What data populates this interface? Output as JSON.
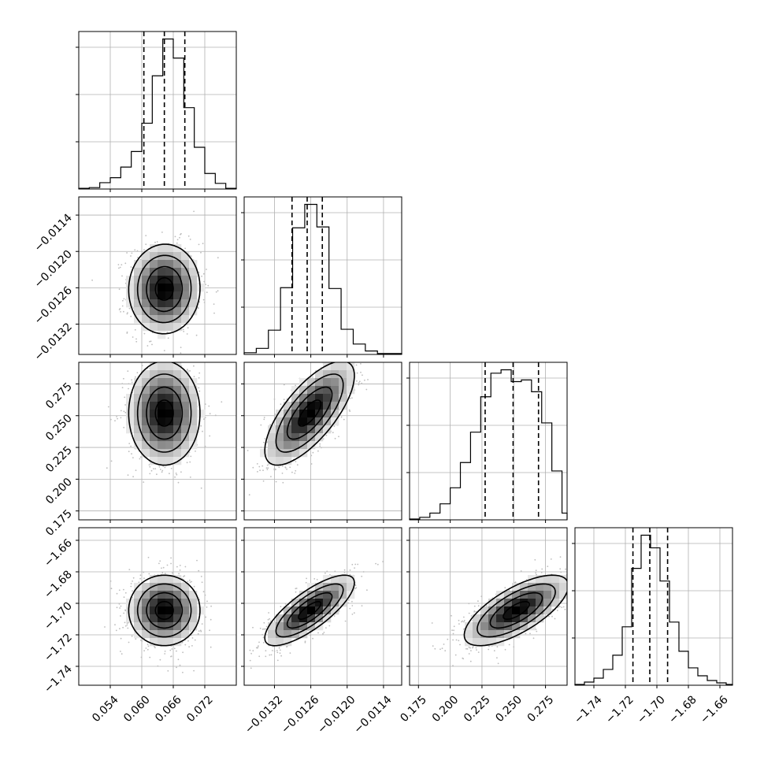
{
  "chart_data": [
    {
      "type": "histogram",
      "panel": "diag-0",
      "xlim": [
        0.048,
        0.078
      ],
      "edges": [
        0.048,
        0.05,
        0.052,
        0.054,
        0.056,
        0.058,
        0.06,
        0.062,
        0.064,
        0.066,
        0.068,
        0.07,
        0.072,
        0.074,
        0.076,
        0.078
      ],
      "counts": [
        1,
        2,
        9,
        16,
        31,
        53,
        93,
        160,
        212,
        185,
        115,
        59,
        22,
        8,
        1
      ],
      "quantiles": [
        0.0604,
        0.0643,
        0.0682
      ],
      "xticks": [
        0.054,
        0.06,
        0.066,
        0.072
      ],
      "xtick_labels": [
        "0.054",
        "0.060",
        "0.066",
        "0.072"
      ]
    },
    {
      "type": "histogram",
      "panel": "diag-1",
      "xlim": [
        -0.0137,
        -0.0111
      ],
      "edges": [
        -0.0137,
        -0.0135,
        -0.0133,
        -0.0131,
        -0.0129,
        -0.0127,
        -0.0125,
        -0.0123,
        -0.0121,
        -0.0119,
        -0.0117,
        -0.0115,
        -0.0113,
        -0.0111
      ],
      "counts": [
        2,
        7,
        28,
        77,
        146,
        173,
        147,
        76,
        29,
        12,
        4,
        1,
        1
      ],
      "quantiles": [
        -0.01291,
        -0.01266,
        -0.01241
      ],
      "xticks": [
        -0.0132,
        -0.0126,
        -0.012,
        -0.0114
      ],
      "xtick_labels": [
        "−0.0132",
        "−0.0126",
        "−0.0120",
        "−0.0114"
      ]
    },
    {
      "type": "histogram",
      "panel": "diag-2",
      "xlim": [
        0.168,
        0.292
      ],
      "edges": [
        0.168,
        0.176,
        0.184,
        0.192,
        0.2,
        0.208,
        0.216,
        0.224,
        0.232,
        0.24,
        0.248,
        0.256,
        0.264,
        0.272,
        0.28,
        0.288,
        0.292
      ],
      "counts": [
        1,
        3,
        8,
        19,
        38,
        68,
        104,
        146,
        174,
        178,
        164,
        166,
        152,
        115,
        58,
        8
      ],
      "quantiles": [
        0.2275,
        0.2495,
        0.2695
      ],
      "xticks": [
        0.175,
        0.2,
        0.225,
        0.25,
        0.275
      ],
      "xtick_labels": [
        "0.175",
        "0.200",
        "0.225",
        "0.250",
        "0.275"
      ]
    },
    {
      "type": "histogram",
      "panel": "diag-3",
      "xlim": [
        -1.752,
        -1.652
      ],
      "edges": [
        -1.752,
        -1.746,
        -1.74,
        -1.734,
        -1.728,
        -1.722,
        -1.716,
        -1.71,
        -1.704,
        -1.698,
        -1.692,
        -1.686,
        -1.68,
        -1.674,
        -1.668,
        -1.662,
        -1.656,
        -1.652
      ],
      "counts": [
        1,
        4,
        9,
        20,
        38,
        74,
        148,
        190,
        174,
        132,
        80,
        43,
        22,
        12,
        6,
        3,
        1
      ],
      "quantiles": [
        -1.7152,
        -1.7045,
        -1.6932
      ],
      "xticks": [
        -1.74,
        -1.72,
        -1.7,
        -1.68,
        -1.66
      ],
      "xtick_labels": [
        "−1.74",
        "−1.72",
        "−1.70",
        "−1.68",
        "−1.66"
      ]
    },
    {
      "type": "heatmap",
      "panel": "pair-1-0",
      "xvar": 0,
      "yvar": 1,
      "xlim": [
        0.048,
        0.078
      ],
      "ylim": [
        -0.0137,
        -0.0111
      ],
      "center": [
        0.0643,
        -0.01262
      ],
      "sigma": [
        0.0034,
        0.00037
      ],
      "rho": 0.02,
      "yticks": [
        -0.0132,
        -0.0126,
        -0.012,
        -0.0114
      ],
      "ytick_labels": [
        "−0.0132",
        "−0.0126",
        "−0.0120",
        "−0.0114"
      ]
    },
    {
      "type": "heatmap",
      "panel": "pair-2-0",
      "xvar": 0,
      "yvar": 2,
      "xlim": [
        0.048,
        0.078
      ],
      "ylim": [
        0.168,
        0.292
      ],
      "center": [
        0.0643,
        0.252
      ],
      "sigma": [
        0.0034,
        0.0205
      ],
      "rho": 0.0,
      "yticks": [
        0.175,
        0.2,
        0.225,
        0.25,
        0.275
      ],
      "ytick_labels": [
        "0.175",
        "0.200",
        "0.225",
        "0.250",
        "0.275"
      ]
    },
    {
      "type": "heatmap",
      "panel": "pair-2-1",
      "xvar": 1,
      "yvar": 2,
      "xlim": [
        -0.0137,
        -0.0111
      ],
      "ylim": [
        0.168,
        0.292
      ],
      "center": [
        -0.01262,
        0.252
      ],
      "sigma": [
        0.00037,
        0.0205
      ],
      "rho": 0.72
    },
    {
      "type": "heatmap",
      "panel": "pair-3-0",
      "xvar": 0,
      "yvar": 3,
      "xlim": [
        0.048,
        0.078
      ],
      "ylim": [
        -1.752,
        -1.652
      ],
      "center": [
        0.0643,
        -1.7045
      ],
      "sigma": [
        0.0034,
        0.0112
      ],
      "rho": 0.0,
      "yticks": [
        -1.74,
        -1.72,
        -1.7,
        -1.68,
        -1.66
      ],
      "ytick_labels": [
        "−1.74",
        "−1.72",
        "−1.70",
        "−1.68",
        "−1.66"
      ]
    },
    {
      "type": "heatmap",
      "panel": "pair-3-1",
      "xvar": 1,
      "yvar": 3,
      "xlim": [
        -0.0137,
        -0.0111
      ],
      "ylim": [
        -1.752,
        -1.652
      ],
      "center": [
        -0.01262,
        -1.7045
      ],
      "sigma": [
        0.00037,
        0.0112
      ],
      "rho": 0.78
    },
    {
      "type": "heatmap",
      "panel": "pair-3-2",
      "xvar": 2,
      "yvar": 3,
      "xlim": [
        0.168,
        0.292
      ],
      "ylim": [
        -1.752,
        -1.652
      ],
      "center": [
        0.252,
        -1.7045
      ],
      "sigma": [
        0.0205,
        0.0112
      ],
      "rho": 0.7
    }
  ]
}
